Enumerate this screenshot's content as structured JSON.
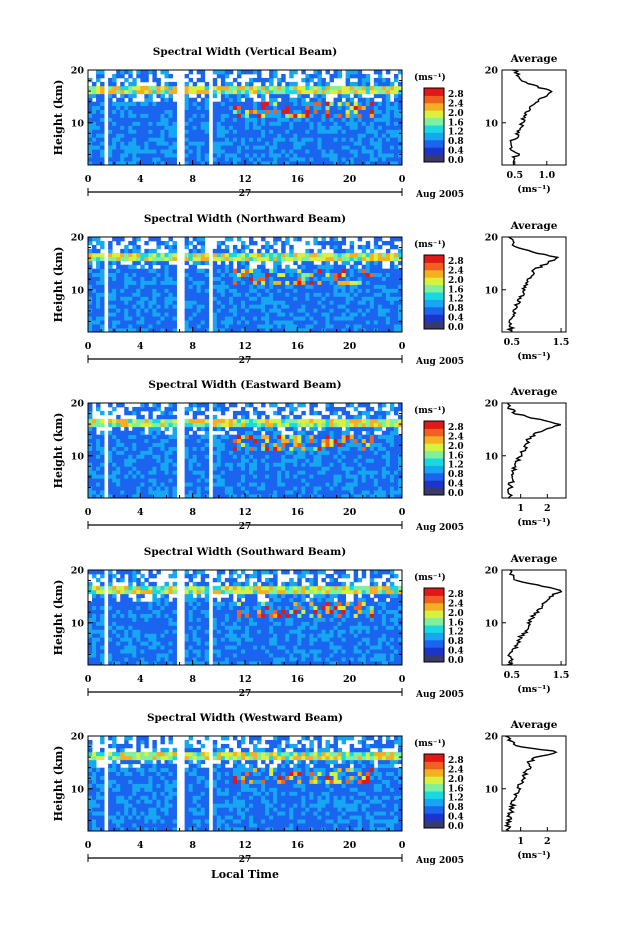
{
  "figure": {
    "x_axis_label": "Local Time",
    "colorbar_unit": "(ms⁻¹)",
    "colorbar_ticks": [
      "2.8",
      "2.4",
      "2.0",
      "1.6",
      "1.2",
      "0.8",
      "0.4",
      "0.0"
    ],
    "date_label": "Aug 2005",
    "day_label": "27",
    "y_label": "Height (km)",
    "avg_title": "Average",
    "avg_xlabel": "(ms⁻¹)",
    "colors": {
      "colormap": [
        "#3a3a6a",
        "#1c34c8",
        "#1a64f0",
        "#16a6f2",
        "#18d8e0",
        "#7ef0a0",
        "#d8f040",
        "#f4b020",
        "#f06020",
        "#e01818"
      ]
    }
  },
  "chart_data": [
    {
      "type": "heatmap",
      "title": "Spectral Width (Vertical Beam)",
      "x_ticks": [
        "0",
        "4",
        "8",
        "12",
        "16",
        "20",
        "0"
      ],
      "xlim": [
        0,
        24
      ],
      "y_ticks": [
        "20",
        "10"
      ],
      "ylim": [
        2,
        20
      ],
      "data_gaps_hours": [
        [
          1.1,
          1.6
        ],
        [
          6.9,
          7.4
        ],
        [
          9.2,
          9.5
        ]
      ],
      "colorbar_range": [
        0.0,
        3.0
      ],
      "average_profile": {
        "title": "Average",
        "x_ticks": [
          "0.5",
          "1.0"
        ],
        "xlim": [
          0.3,
          1.3
        ],
        "y_ticks": [
          "20",
          "10"
        ],
        "ylim": [
          2,
          20
        ],
        "height_km": [
          2,
          3,
          4,
          5,
          6,
          7,
          8,
          9,
          10,
          11,
          12,
          13,
          14,
          15,
          16,
          17,
          18,
          19,
          20
        ],
        "width_ms": [
          0.5,
          0.45,
          0.55,
          0.45,
          0.4,
          0.5,
          0.55,
          0.6,
          0.6,
          0.65,
          0.7,
          0.75,
          0.85,
          0.95,
          1.1,
          0.8,
          0.6,
          0.55,
          0.5
        ]
      }
    },
    {
      "type": "heatmap",
      "title": "Spectral Width (Northward Beam)",
      "x_ticks": [
        "0",
        "4",
        "8",
        "12",
        "16",
        "20",
        "0"
      ],
      "xlim": [
        0,
        24
      ],
      "y_ticks": [
        "20",
        "10"
      ],
      "ylim": [
        2,
        20
      ],
      "data_gaps_hours": [
        [
          1.1,
          1.6
        ],
        [
          6.9,
          7.4
        ],
        [
          9.2,
          9.5
        ]
      ],
      "colorbar_range": [
        0.0,
        3.0
      ],
      "average_profile": {
        "title": "Average",
        "x_ticks": [
          "0.5",
          "1.5"
        ],
        "xlim": [
          0.3,
          1.6
        ],
        "y_ticks": [
          "20",
          "10"
        ],
        "ylim": [
          2,
          20
        ],
        "height_km": [
          2,
          3,
          4,
          5,
          6,
          7,
          8,
          9,
          10,
          11,
          12,
          13,
          14,
          15,
          16,
          17,
          18,
          19,
          20
        ],
        "width_ms": [
          0.45,
          0.5,
          0.45,
          0.5,
          0.55,
          0.6,
          0.65,
          0.7,
          0.75,
          0.8,
          0.85,
          0.9,
          1.0,
          1.2,
          1.45,
          1.0,
          0.6,
          0.5,
          0.45
        ]
      }
    },
    {
      "type": "heatmap",
      "title": "Spectral Width (Eastward Beam)",
      "x_ticks": [
        "0",
        "4",
        "8",
        "12",
        "16",
        "20",
        "0"
      ],
      "xlim": [
        0,
        24
      ],
      "y_ticks": [
        "20",
        "10"
      ],
      "ylim": [
        2,
        20
      ],
      "data_gaps_hours": [
        [
          1.1,
          1.6
        ],
        [
          6.9,
          7.4
        ],
        [
          9.2,
          9.5
        ]
      ],
      "colorbar_range": [
        0.0,
        3.0
      ],
      "average_profile": {
        "title": "Average",
        "x_ticks": [
          "1",
          "2"
        ],
        "xlim": [
          0.3,
          2.7
        ],
        "y_ticks": [
          "20",
          "10"
        ],
        "ylim": [
          2,
          20
        ],
        "height_km": [
          2,
          3,
          4,
          5,
          6,
          7,
          8,
          9,
          10,
          11,
          12,
          13,
          14,
          15,
          16,
          17,
          18,
          19,
          20
        ],
        "width_ms": [
          0.6,
          0.55,
          0.6,
          0.65,
          0.7,
          0.75,
          0.8,
          0.9,
          1.0,
          1.1,
          1.2,
          1.3,
          1.5,
          1.9,
          2.5,
          1.6,
          0.8,
          0.6,
          0.5
        ]
      }
    },
    {
      "type": "heatmap",
      "title": "Spectral Width (Southward Beam)",
      "x_ticks": [
        "0",
        "4",
        "8",
        "12",
        "16",
        "20",
        "0"
      ],
      "xlim": [
        0,
        24
      ],
      "y_ticks": [
        "20",
        "10"
      ],
      "ylim": [
        2,
        20
      ],
      "data_gaps_hours": [
        [
          1.1,
          1.6
        ],
        [
          6.9,
          7.4
        ],
        [
          9.2,
          9.5
        ]
      ],
      "colorbar_range": [
        0.0,
        3.0
      ],
      "average_profile": {
        "title": "Average",
        "x_ticks": [
          "0.5",
          "1.5"
        ],
        "xlim": [
          0.3,
          1.6
        ],
        "y_ticks": [
          "20",
          "10"
        ],
        "ylim": [
          2,
          20
        ],
        "height_km": [
          2,
          3,
          4,
          5,
          6,
          7,
          8,
          9,
          10,
          11,
          12,
          13,
          14,
          15,
          16,
          17,
          18,
          19,
          20
        ],
        "width_ms": [
          0.45,
          0.5,
          0.45,
          0.55,
          0.6,
          0.65,
          0.75,
          0.8,
          0.85,
          0.9,
          1.0,
          1.1,
          1.2,
          1.3,
          1.5,
          1.1,
          0.6,
          0.5,
          0.45
        ]
      }
    },
    {
      "type": "heatmap",
      "title": "Spectral Width (Westward Beam)",
      "x_ticks": [
        "0",
        "4",
        "8",
        "12",
        "16",
        "20",
        "0"
      ],
      "xlim": [
        0,
        24
      ],
      "y_ticks": [
        "20",
        "10"
      ],
      "ylim": [
        2,
        20
      ],
      "data_gaps_hours": [
        [
          1.1,
          1.6
        ],
        [
          6.9,
          7.4
        ],
        [
          9.2,
          9.5
        ]
      ],
      "colorbar_range": [
        0.0,
        3.0
      ],
      "average_profile": {
        "title": "Average",
        "x_ticks": [
          "1",
          "2"
        ],
        "xlim": [
          0.3,
          2.7
        ],
        "y_ticks": [
          "20",
          "10"
        ],
        "ylim": [
          2,
          20
        ],
        "height_km": [
          2,
          3,
          4,
          5,
          6,
          7,
          8,
          9,
          10,
          11,
          12,
          13,
          14,
          15,
          16,
          17,
          18,
          19,
          20
        ],
        "width_ms": [
          0.55,
          0.5,
          0.55,
          0.6,
          0.65,
          0.7,
          0.75,
          0.8,
          0.9,
          1.0,
          1.1,
          1.2,
          1.35,
          1.3,
          1.6,
          2.4,
          0.9,
          0.6,
          0.5
        ]
      }
    }
  ]
}
